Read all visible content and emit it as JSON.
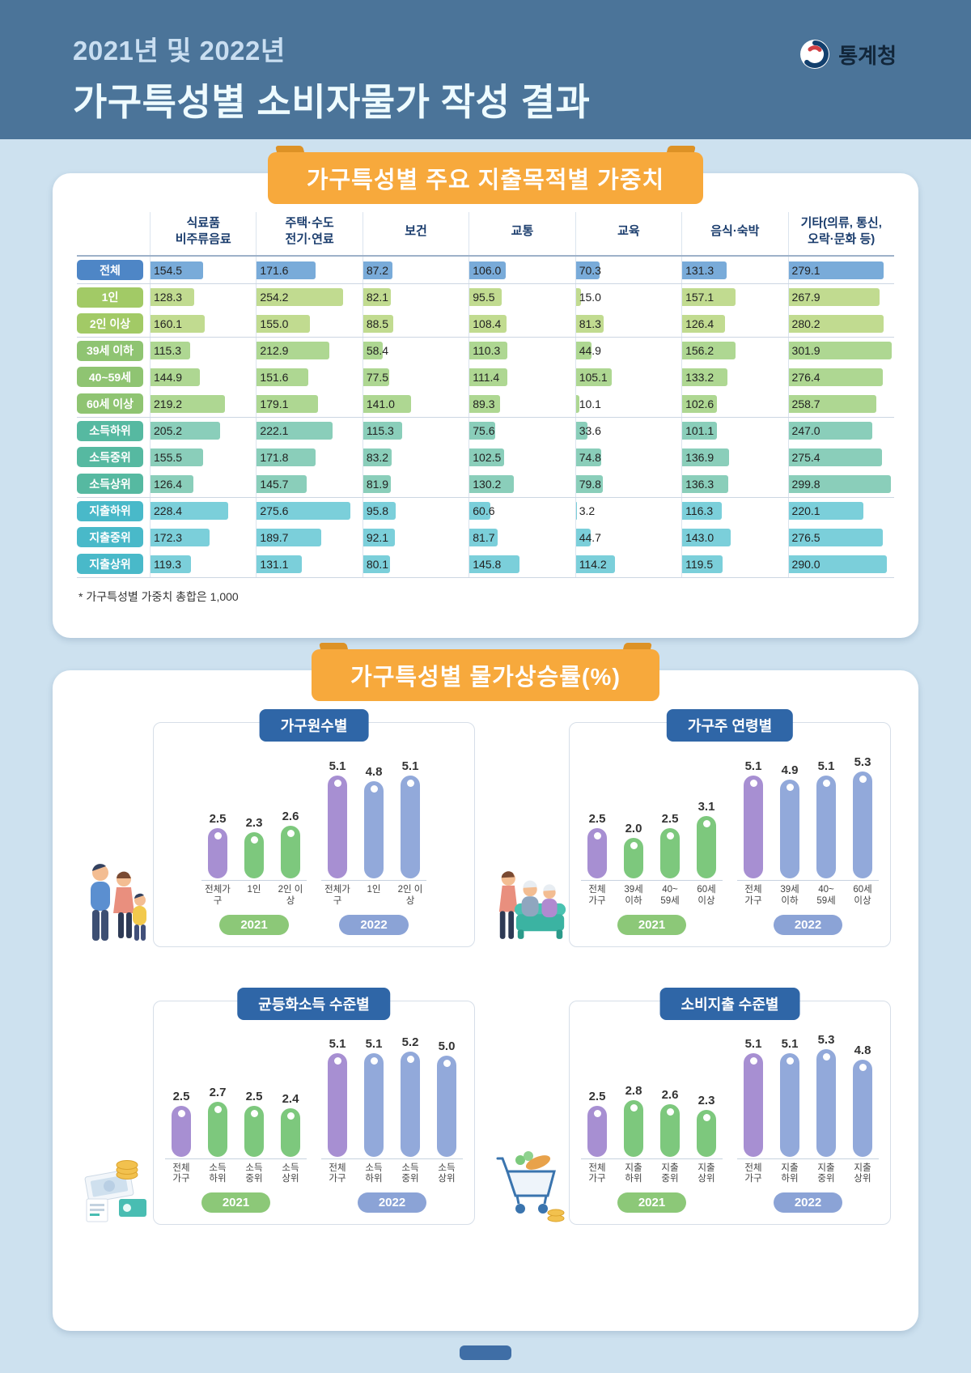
{
  "header": {
    "title_line1": "2021년 및 2022년",
    "title_line2": "가구특성별 소비자물가 작성 결과",
    "agency": "통계청"
  },
  "sections": {
    "inflation_title": "가구특성별 물가상승률(%)"
  },
  "colors": {
    "accent_ribbon": "#f7a93c",
    "ribbon_fold": "#dd9226",
    "panel_title_bg": "#2f66a7",
    "groups": {
      "total": {
        "pill": "#4e86c6",
        "bar": "#79abd9"
      },
      "size": {
        "pill": "#a2ca66",
        "bar": "#c1db90"
      },
      "age": {
        "pill": "#8fc472",
        "bar": "#aed792"
      },
      "income": {
        "pill": "#56b9a1",
        "bar": "#8aceba"
      },
      "expense": {
        "pill": "#49b9c9",
        "bar": "#7bcfda"
      }
    },
    "bar_total": "#a78fd2",
    "bar_2021": "#7dc87d",
    "bar_2022": "#92a9da",
    "year_2021_badge": "#8cc878",
    "year_2022_badge": "#8ba3d6"
  },
  "chart_data": [
    {
      "type": "table",
      "title": "가구특성별 주요 지출목적별 가중치",
      "footnote": "* 가구특성별 가중치 총합은 1,000",
      "columns": [
        "식료품\n비주류음료",
        "주택·수도\n전기·연료",
        "보건",
        "교통",
        "교육",
        "음식·숙박",
        "기타(의류, 통신,\n오락·문화 등)"
      ],
      "bar_scale_max": 310,
      "rows": [
        {
          "label": "전체",
          "group": "total",
          "values": [
            154.5,
            171.6,
            87.2,
            106.0,
            70.3,
            131.3,
            279.1
          ]
        },
        {
          "label": "1인",
          "group": "size",
          "values": [
            128.3,
            254.2,
            82.1,
            95.5,
            15.0,
            157.1,
            267.9
          ]
        },
        {
          "label": "2인 이상",
          "group": "size",
          "values": [
            160.1,
            155.0,
            88.5,
            108.4,
            81.3,
            126.4,
            280.2
          ]
        },
        {
          "label": "39세 이하",
          "group": "age",
          "values": [
            115.3,
            212.9,
            58.4,
            110.3,
            44.9,
            156.2,
            301.9
          ]
        },
        {
          "label": "40~59세",
          "group": "age",
          "values": [
            144.9,
            151.6,
            77.5,
            111.4,
            105.1,
            133.2,
            276.4
          ]
        },
        {
          "label": "60세 이상",
          "group": "age",
          "values": [
            219.2,
            179.1,
            141.0,
            89.3,
            10.1,
            102.6,
            258.7
          ]
        },
        {
          "label": "소득하위",
          "group": "income",
          "values": [
            205.2,
            222.1,
            115.3,
            75.6,
            33.6,
            101.1,
            247.0
          ]
        },
        {
          "label": "소득중위",
          "group": "income",
          "values": [
            155.5,
            171.8,
            83.2,
            102.5,
            74.8,
            136.9,
            275.4
          ]
        },
        {
          "label": "소득상위",
          "group": "income",
          "values": [
            126.4,
            145.7,
            81.9,
            130.2,
            79.8,
            136.3,
            299.8
          ]
        },
        {
          "label": "지출하위",
          "group": "expense",
          "values": [
            228.4,
            275.6,
            95.8,
            60.6,
            3.2,
            116.3,
            220.1
          ]
        },
        {
          "label": "지출중위",
          "group": "expense",
          "values": [
            172.3,
            189.7,
            92.1,
            81.7,
            44.7,
            143.0,
            276.5
          ]
        },
        {
          "label": "지출상위",
          "group": "expense",
          "values": [
            119.3,
            131.1,
            80.1,
            145.8,
            114.2,
            119.5,
            290.0
          ]
        }
      ]
    },
    {
      "type": "bar",
      "title": "가구원수별",
      "illustration": "family",
      "unit": "%",
      "ylim": [
        0,
        6
      ],
      "categories": [
        "전체가구",
        "1인",
        "2인 이상"
      ],
      "series": [
        {
          "name": "2021",
          "values": [
            2.5,
            2.3,
            2.6
          ]
        },
        {
          "name": "2022",
          "values": [
            5.1,
            4.8,
            5.1
          ]
        }
      ]
    },
    {
      "type": "bar",
      "title": "가구주 연령별",
      "illustration": "elderly",
      "unit": "%",
      "ylim": [
        0,
        6
      ],
      "categories": [
        "전체\n가구",
        "39세\n이하",
        "40~\n59세",
        "60세\n이상"
      ],
      "series": [
        {
          "name": "2021",
          "values": [
            2.5,
            2.0,
            2.5,
            3.1
          ]
        },
        {
          "name": "2022",
          "values": [
            5.1,
            4.9,
            5.1,
            5.3
          ]
        }
      ]
    },
    {
      "type": "bar",
      "title": "균등화소득 수준별",
      "illustration": "money",
      "unit": "%",
      "ylim": [
        0,
        6
      ],
      "categories": [
        "전체\n가구",
        "소득\n하위",
        "소득\n중위",
        "소득\n상위"
      ],
      "series": [
        {
          "name": "2021",
          "values": [
            2.5,
            2.7,
            2.5,
            2.4
          ]
        },
        {
          "name": "2022",
          "values": [
            5.1,
            5.1,
            5.2,
            5.0
          ]
        }
      ]
    },
    {
      "type": "bar",
      "title": "소비지출 수준별",
      "illustration": "cart",
      "unit": "%",
      "ylim": [
        0,
        6
      ],
      "categories": [
        "전체\n가구",
        "지출\n하위",
        "지출\n중위",
        "지출\n상위"
      ],
      "series": [
        {
          "name": "2021",
          "values": [
            2.5,
            2.8,
            2.6,
            2.3
          ]
        },
        {
          "name": "2022",
          "values": [
            5.1,
            5.1,
            5.3,
            4.8
          ]
        }
      ]
    }
  ]
}
